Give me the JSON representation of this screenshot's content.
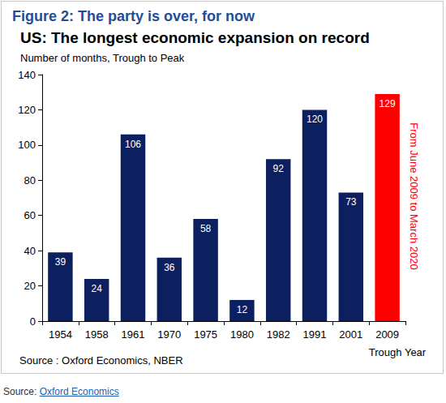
{
  "chart_data": {
    "type": "bar",
    "title": "Figure 2: The party is over, for now",
    "subtitle": "US: The longest economic expansion on record",
    "y_label": "Number of months, Trough to Peak",
    "x_label": "Trough Year",
    "categories": [
      "1954",
      "1958",
      "1961",
      "1970",
      "1975",
      "1980",
      "1982",
      "1991",
      "2001",
      "2009"
    ],
    "values": [
      39,
      24,
      106,
      36,
      58,
      12,
      92,
      120,
      73,
      129
    ],
    "colors": [
      "#0c1f5e",
      "#0c1f5e",
      "#0c1f5e",
      "#0c1f5e",
      "#0c1f5e",
      "#0c1f5e",
      "#0c1f5e",
      "#0c1f5e",
      "#0c1f5e",
      "#ff0000"
    ],
    "ylim": [
      0,
      140
    ],
    "yticks": [
      0,
      20,
      40,
      60,
      80,
      100,
      120,
      140
    ],
    "grid": false,
    "data_labels": true,
    "annotations": [
      "From June 2009 to March 2020"
    ],
    "source": "Source : Oxford Economics, NBER",
    "page_source": {
      "label": "Source:",
      "link": "Oxford Economics"
    }
  }
}
